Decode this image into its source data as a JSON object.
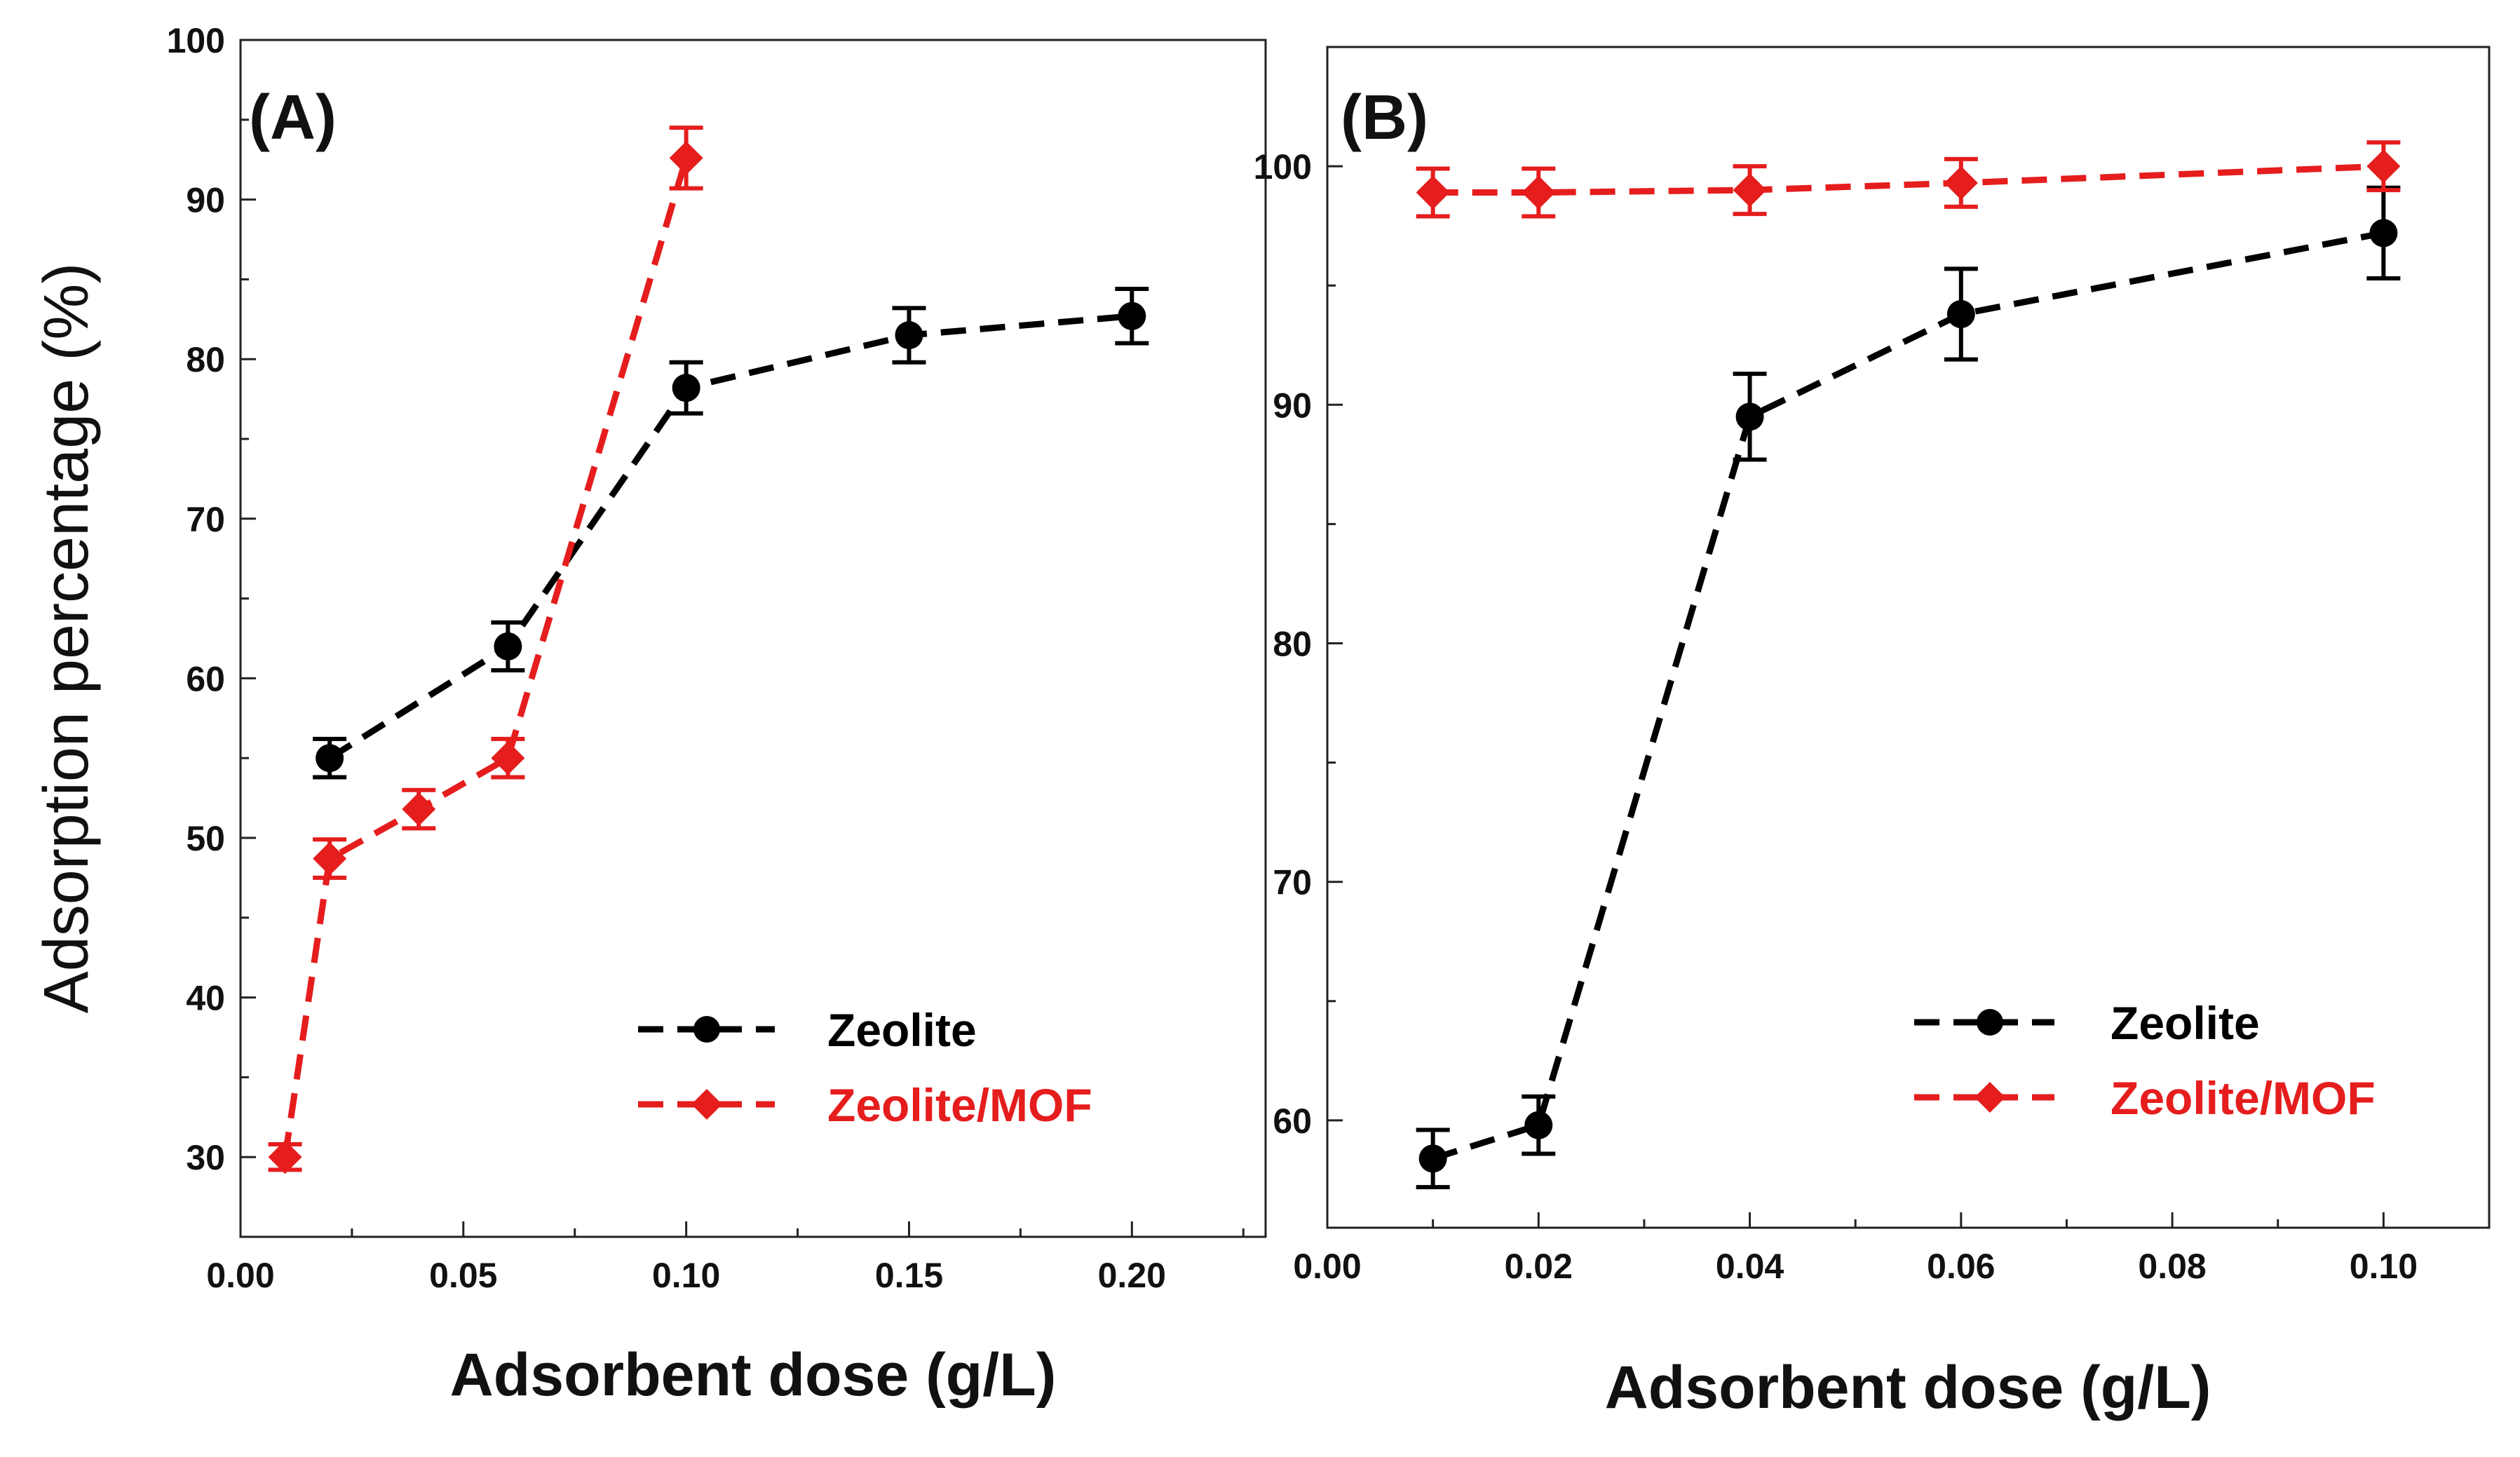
{
  "chart_data": [
    {
      "type": "line",
      "panel_label": "(A)",
      "xlabel": "Adsorbent dose (g/L)",
      "ylabel": "Adsorption percentage (%)",
      "xlim": [
        0.0,
        0.23
      ],
      "ylim": [
        25,
        100
      ],
      "x_ticks": [
        0.0,
        0.05,
        0.1,
        0.15,
        0.2
      ],
      "x_tick_labels": [
        "0.00",
        "0.05",
        "0.10",
        "0.15",
        "0.20"
      ],
      "y_ticks": [
        30,
        40,
        50,
        60,
        70,
        80,
        90,
        100
      ],
      "y_tick_labels": [
        "30",
        "40",
        "50",
        "60",
        "70",
        "80",
        "90",
        "100"
      ],
      "legend_position": "lower-right",
      "series": [
        {
          "name": "Zeolite",
          "color": "#000000",
          "marker": "circle",
          "x": [
            0.02,
            0.06,
            0.1,
            0.15,
            0.2
          ],
          "y": [
            55.0,
            62.0,
            78.2,
            81.5,
            82.7
          ],
          "err": [
            1.2,
            1.5,
            1.6,
            1.7,
            1.7
          ]
        },
        {
          "name": "Zeolite/MOF",
          "color": "#e51d1d",
          "marker": "diamond",
          "x": [
            0.01,
            0.02,
            0.04,
            0.06,
            0.1
          ],
          "y": [
            30.0,
            48.7,
            51.8,
            55.0,
            92.6
          ],
          "err": [
            0.8,
            1.2,
            1.2,
            1.2,
            1.9
          ]
        }
      ]
    },
    {
      "type": "line",
      "panel_label": "(B)",
      "xlabel": "Adsorbent dose (g/L)",
      "ylabel": "",
      "xlim": [
        0.0,
        0.11
      ],
      "ylim": [
        55.5,
        105
      ],
      "x_ticks": [
        0.0,
        0.02,
        0.04,
        0.06,
        0.08,
        0.1
      ],
      "x_tick_labels": [
        "0.00",
        "0.02",
        "0.04",
        "0.06",
        "0.08",
        "0.10"
      ],
      "y_ticks": [
        60,
        70,
        80,
        90,
        100
      ],
      "y_tick_labels": [
        "60",
        "70",
        "80",
        "90",
        "100"
      ],
      "legend_position": "lower-right",
      "series": [
        {
          "name": "Zeolite",
          "color": "#000000",
          "marker": "circle",
          "x": [
            0.01,
            0.02,
            0.04,
            0.06,
            0.1
          ],
          "y": [
            58.4,
            59.8,
            89.5,
            93.8,
            97.2
          ],
          "err": [
            1.2,
            1.2,
            1.8,
            1.9,
            1.9
          ]
        },
        {
          "name": "Zeolite/MOF",
          "color": "#e51d1d",
          "marker": "diamond",
          "x": [
            0.01,
            0.02,
            0.04,
            0.06,
            0.1
          ],
          "y": [
            98.9,
            98.9,
            99.0,
            99.3,
            100.0
          ],
          "err": [
            1.0,
            1.0,
            1.0,
            1.0,
            1.0
          ]
        }
      ]
    }
  ]
}
